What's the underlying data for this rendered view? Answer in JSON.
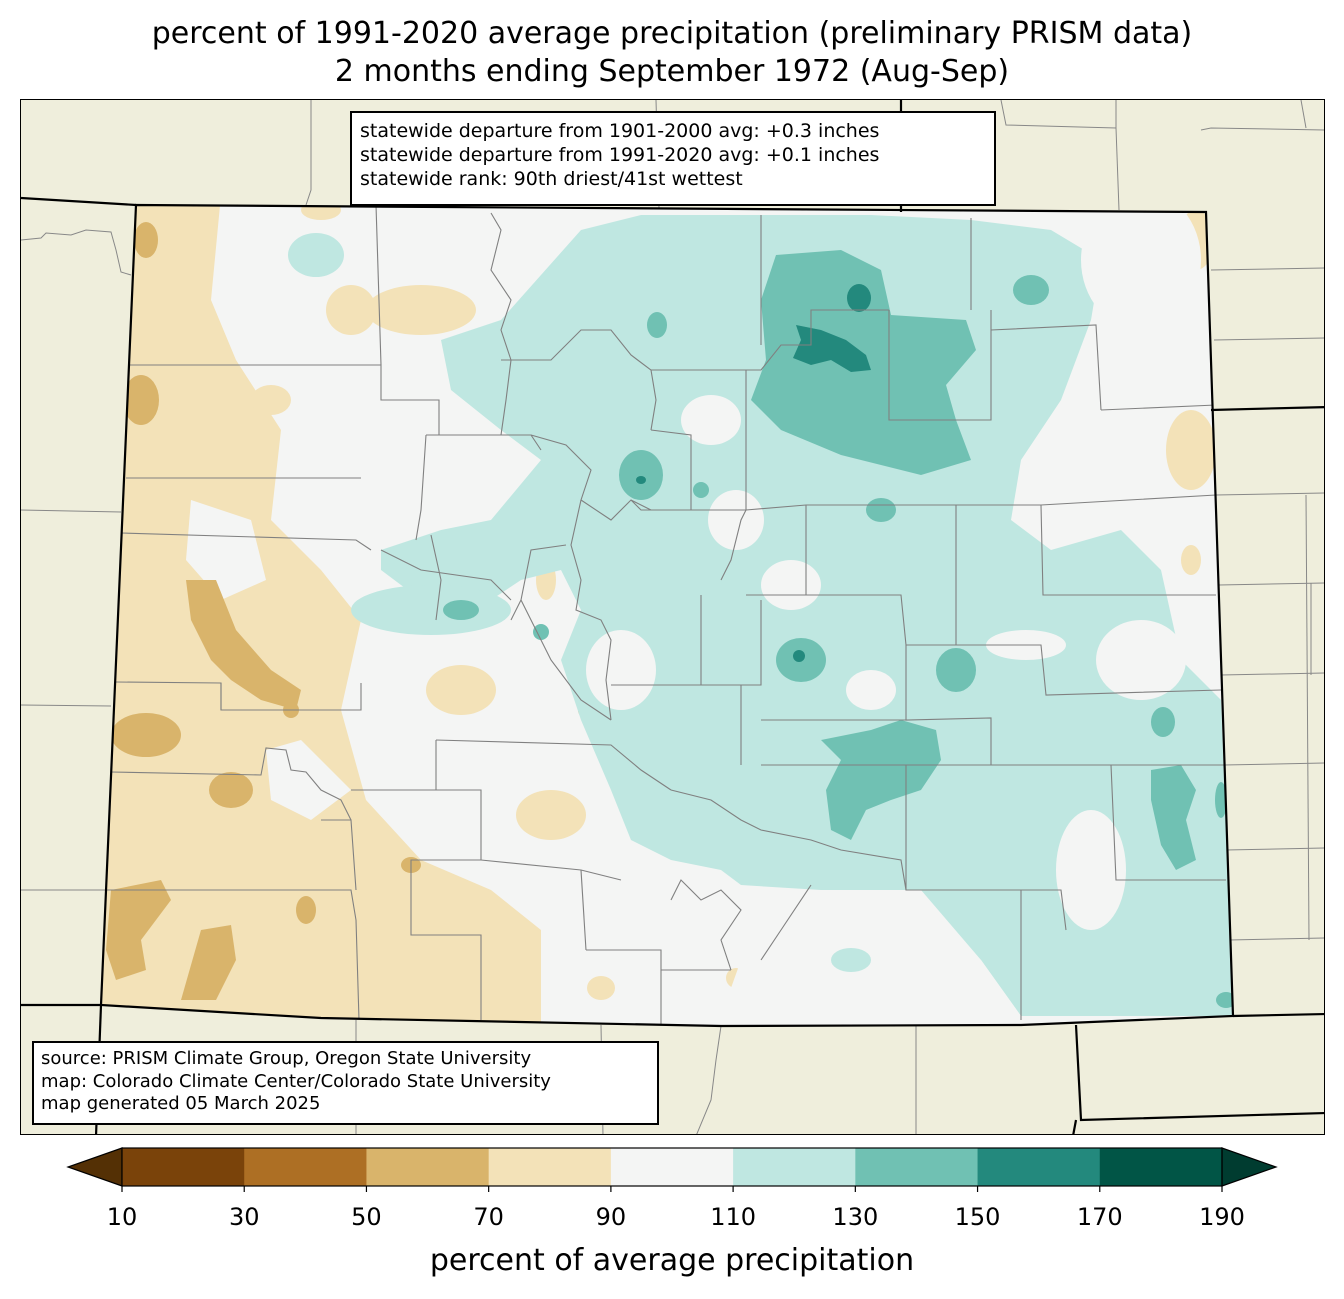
{
  "title_line1": "percent of 1991-2020 average precipitation (preliminary PRISM data)",
  "title_line2": "2 months ending September 1972 (Aug-Sep)",
  "stats": {
    "line1": "statewide departure from 1901-2000 avg: +0.3 inches",
    "line2": "statewide departure from 1991-2020 avg: +0.1 inches",
    "line3": "statewide rank: 90th driest/41st wettest"
  },
  "source": {
    "line1": "source: PRISM Climate Group, Oregon State University",
    "line2": "map: Colorado Climate Center/Colorado State University",
    "line3": "map generated 05 March 2025"
  },
  "colorbar": {
    "label": "percent of average precipitation",
    "ticks": [
      "10",
      "30",
      "50",
      "70",
      "90",
      "110",
      "130",
      "150",
      "170",
      "190"
    ],
    "low_extend_color": "#543005",
    "high_extend_color": "#003c30",
    "bins": [
      {
        "range": "10-30",
        "color": "#7a430a"
      },
      {
        "range": "30-50",
        "color": "#ad6f24"
      },
      {
        "range": "50-70",
        "color": "#d9b46b"
      },
      {
        "range": "70-90",
        "color": "#f3e2b8"
      },
      {
        "range": "90-110",
        "color": "#f4f5f4"
      },
      {
        "range": "110-130",
        "color": "#bfe7e1"
      },
      {
        "range": "130-150",
        "color": "#70c1b3"
      },
      {
        "range": "150-170",
        "color": "#23897d"
      },
      {
        "range": "170-190",
        "color": "#015546"
      }
    ]
  },
  "map": {
    "background_color": "#efeedc",
    "state_outline_color": "#000000",
    "county_line_color": "#808080"
  }
}
